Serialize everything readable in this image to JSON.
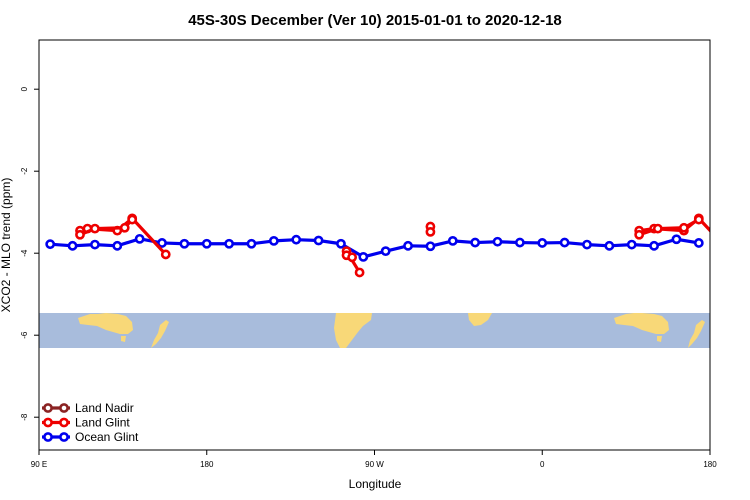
{
  "chart_data": {
    "type": "line",
    "title": "45S-30S December (Ver 10)   2015-01-01 to 2020-12-18",
    "xlabel": "Longitude",
    "ylabel": "XCO2 - MLO trend (ppm)",
    "xlim": [
      90,
      450
    ],
    "ylim": [
      -8.8,
      1.2
    ],
    "x_ticks": [
      {
        "value": 90,
        "label": "90 E"
      },
      {
        "value": 180,
        "label": "180"
      },
      {
        "value": 270,
        "label": "90 W"
      },
      {
        "value": 360,
        "label": "0"
      },
      {
        "value": 450,
        "label": "180"
      }
    ],
    "y_ticks": [
      {
        "value": 0,
        "label": "0"
      },
      {
        "value": -2,
        "label": "-2"
      },
      {
        "value": -4,
        "label": "-4"
      },
      {
        "value": -6,
        "label": "-6"
      },
      {
        "value": -8,
        "label": "-8"
      }
    ],
    "map_band": {
      "y_min": -6.25,
      "y_max": -5.4,
      "ocean_color": "#a8bcdc",
      "land_color": "#f8d878"
    },
    "legend": {
      "position": "bottom-left",
      "entries": [
        {
          "label": "Land Nadir",
          "color": "#8b2323"
        },
        {
          "label": "Land Glint",
          "color": "#ee0000"
        },
        {
          "label": "Ocean Glint",
          "color": "#0000ee"
        }
      ]
    },
    "series": [
      {
        "name": "Ocean Glint",
        "color": "#0000ee",
        "segments": [
          [
            [
              96,
              -3.78
            ],
            [
              108,
              -3.82
            ],
            [
              120,
              -3.79
            ],
            [
              132,
              -3.82
            ],
            [
              144,
              -3.65
            ],
            [
              156,
              -3.75
            ],
            [
              168,
              -3.77
            ],
            [
              180,
              -3.77
            ],
            [
              192,
              -3.77
            ],
            [
              204,
              -3.77
            ],
            [
              216,
              -3.7
            ],
            [
              228,
              -3.67
            ],
            [
              240,
              -3.69
            ],
            [
              252,
              -3.77
            ],
            [
              264,
              -4.09
            ],
            [
              276,
              -3.95
            ],
            [
              288,
              -3.82
            ],
            [
              300,
              -3.83
            ],
            [
              312,
              -3.7
            ],
            [
              324,
              -3.74
            ],
            [
              336,
              -3.72
            ],
            [
              348,
              -3.74
            ],
            [
              360,
              -3.75
            ],
            [
              372,
              -3.74
            ],
            [
              384,
              -3.79
            ],
            [
              396,
              -3.82
            ],
            [
              408,
              -3.79
            ],
            [
              420,
              -3.82
            ],
            [
              432,
              -3.66
            ],
            [
              444,
              -3.75
            ]
          ]
        ]
      },
      {
        "name": "Land Glint",
        "color": "#ee0000",
        "segments": [
          [
            [
              112,
              -3.45
            ],
            [
              116,
              -3.4
            ],
            [
              132,
              -3.45
            ],
            [
              140,
              -3.15
            ],
            [
              158,
              -4.03
            ]
          ],
          [
            [
              112,
              -3.55
            ],
            [
              120,
              -3.4
            ],
            [
              136,
              -3.38
            ],
            [
              140,
              -3.18
            ]
          ],
          [
            [
              255,
              -3.95
            ],
            [
              262,
              -4.47
            ]
          ],
          [
            [
              255,
              -4.05
            ],
            [
              258,
              -4.1
            ]
          ],
          [
            [
              300,
              -3.35
            ],
            [
              300,
              -3.48
            ]
          ],
          [
            [
              412,
              -3.45
            ],
            [
              420,
              -3.4
            ],
            [
              436,
              -3.45
            ],
            [
              444,
              -3.15
            ],
            [
              462,
              -4.03
            ]
          ],
          [
            [
              412,
              -3.55
            ],
            [
              422,
              -3.4
            ],
            [
              436,
              -3.38
            ],
            [
              444,
              -3.18
            ]
          ]
        ]
      }
    ]
  }
}
